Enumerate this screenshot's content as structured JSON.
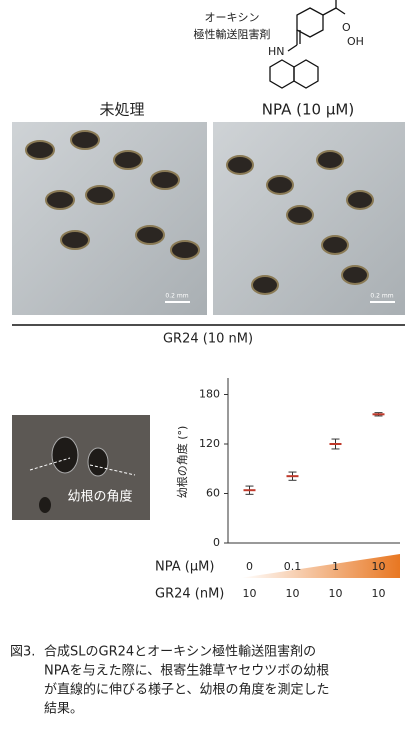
{
  "structure": {
    "name_line1": "オーキシン",
    "name_line2": "極性輸送阻害剤",
    "atom_o": "O",
    "atom_oh": "OH",
    "atom_hn": "HN"
  },
  "photos": {
    "left_label": "未処理",
    "right_label": "NPA (10 μM)",
    "scale_left": "0.2 mm",
    "scale_right": "0.2 mm",
    "treatment": "GR24 (10 nM)",
    "angle_label": "幼根の角度"
  },
  "chart_data": {
    "type": "errorbar",
    "ylabel": "幼根の角度 (°)",
    "categories": [
      "0",
      "0.1",
      "1",
      "10"
    ],
    "category_label": "NPA (μM)",
    "second_row": {
      "label": "GR24 (nM)",
      "values": [
        10,
        10,
        10,
        10
      ]
    },
    "values": [
      64,
      81,
      120,
      156
    ],
    "errors": [
      5,
      5,
      6,
      2
    ],
    "color": "#c0392b",
    "ylim": [
      0,
      200
    ],
    "yticks": [
      0,
      60,
      120,
      180
    ]
  },
  "caption": {
    "number": "図3.",
    "lines": [
      "合成SLのGR24とオーキシン極性輸送阻害剤の",
      "NPAを与えた際に、根寄生雑草ヤセウツボの幼根",
      "が直線的に伸びる様子と、幼根の角度を測定した",
      "結果。"
    ]
  }
}
